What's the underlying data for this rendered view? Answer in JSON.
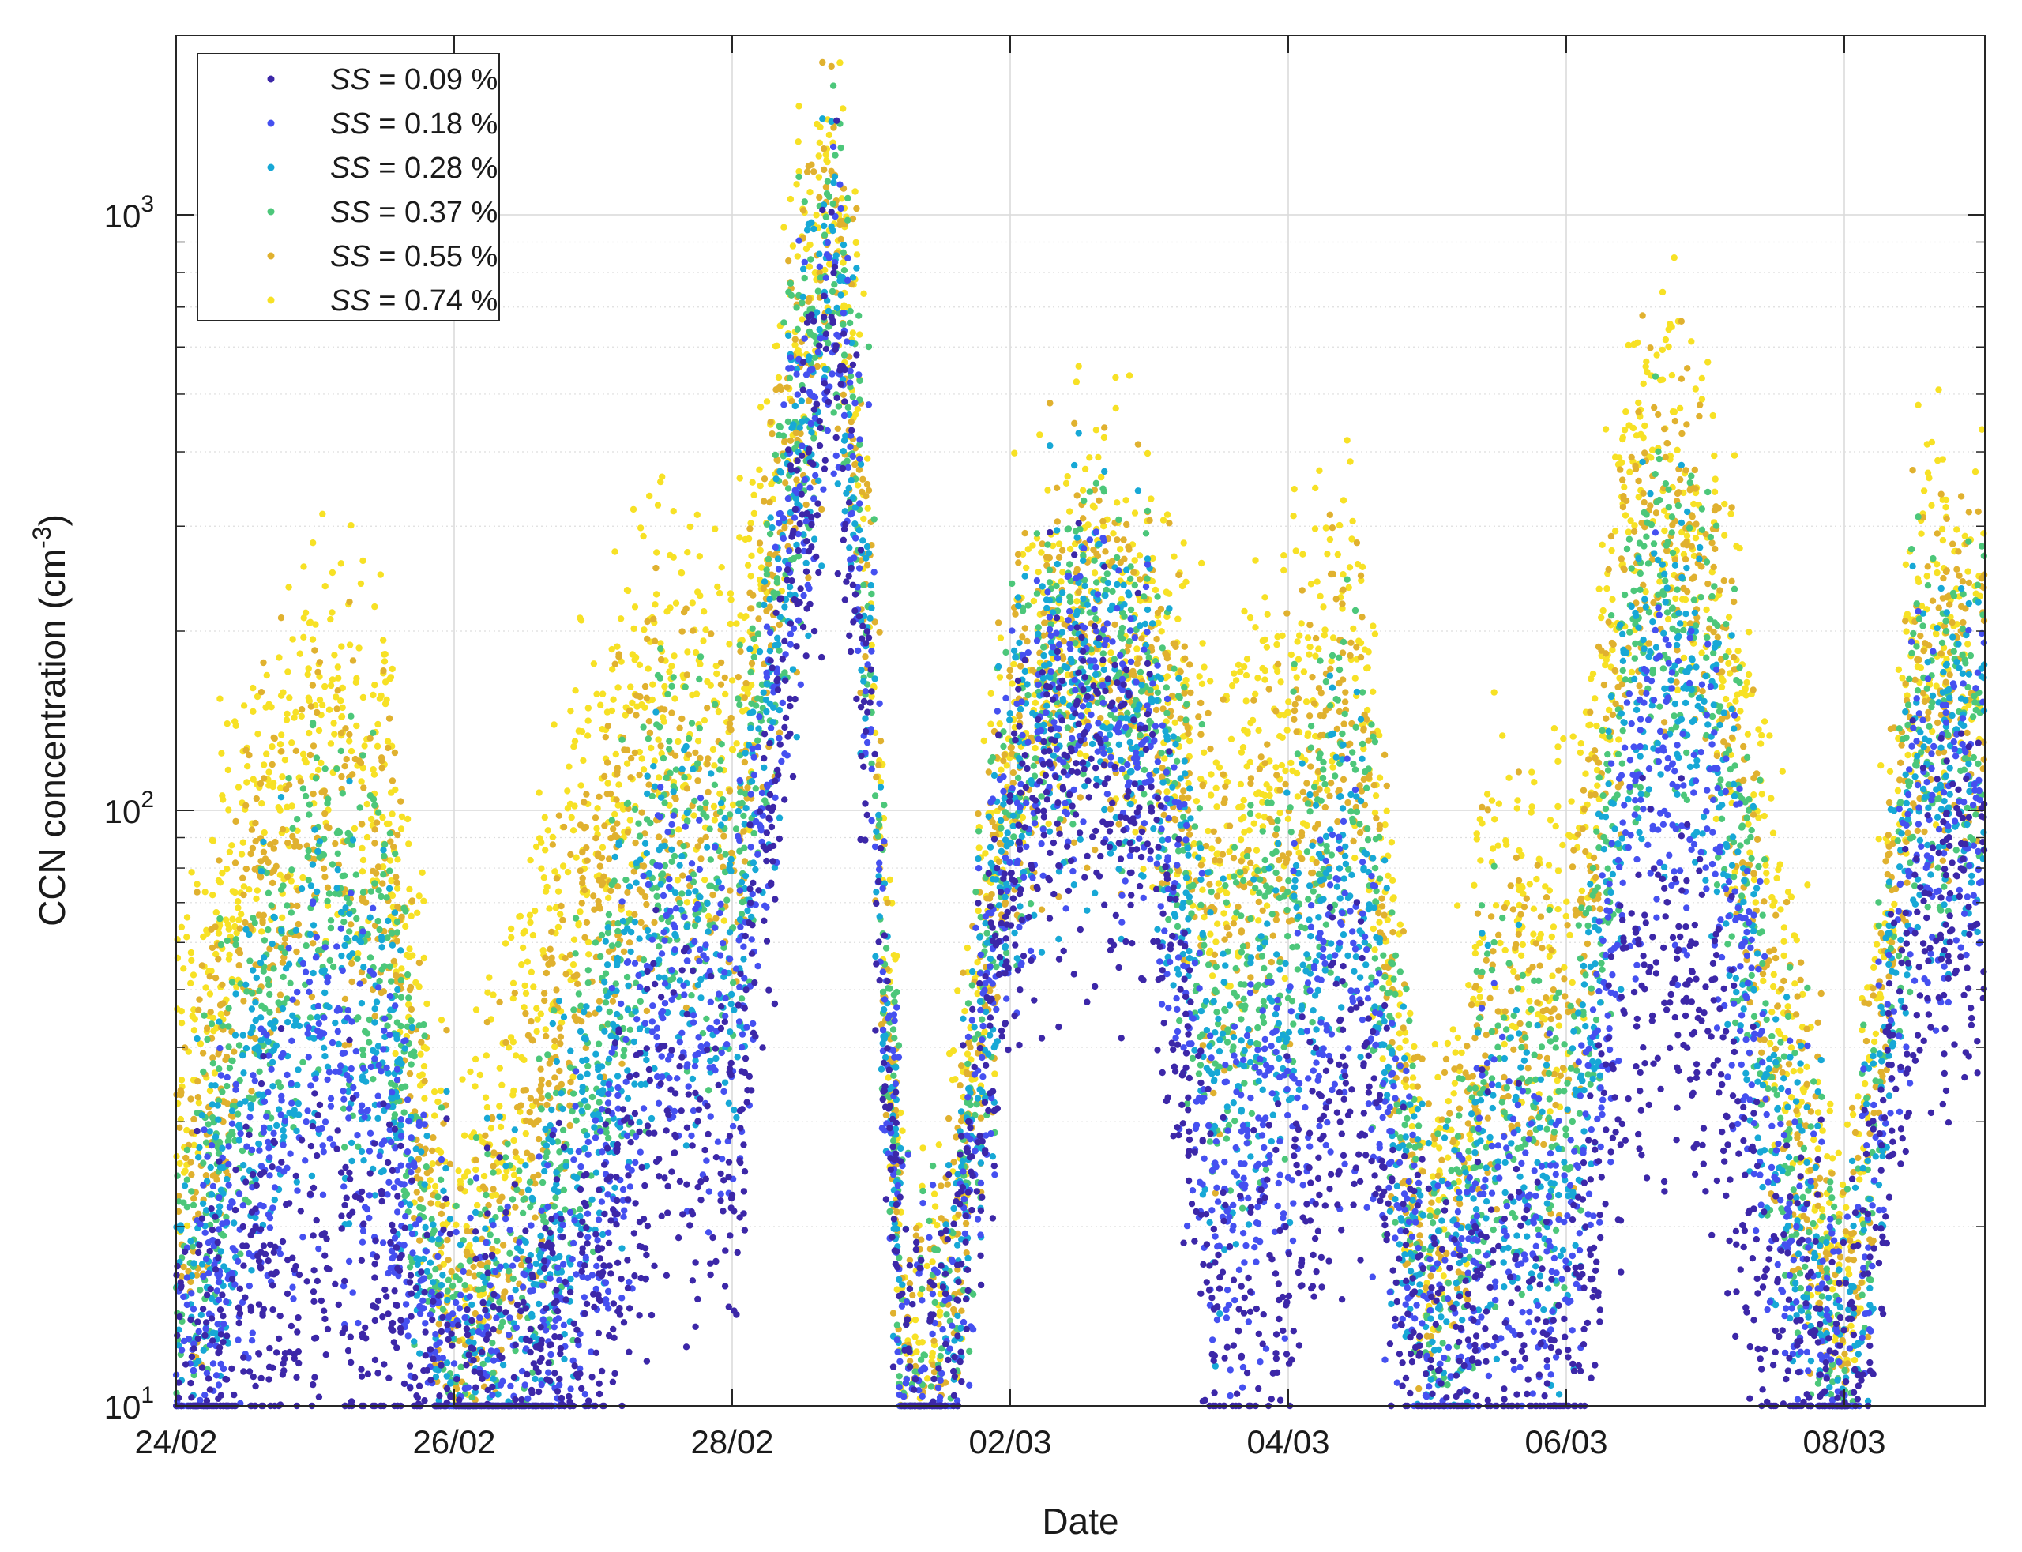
{
  "chart_data": {
    "type": "scatter",
    "title": "",
    "xlabel": "Date",
    "ylabel": "CCN concentration (cm",
    "ylabel_exponent": "-3",
    "ylabel_suffix": ")",
    "x_start_date": "2024-02-24",
    "xlim": [
      "24/02",
      "09/03"
    ],
    "x_tick_labels": [
      "24/02",
      "26/02",
      "28/02",
      "02/03",
      "04/03",
      "06/03",
      "08/03"
    ],
    "y_scale": "log",
    "ylim": [
      10,
      2000
    ],
    "y_tick_labels": [
      {
        "base": "10",
        "exp": "1",
        "value": 10
      },
      {
        "base": "10",
        "exp": "2",
        "value": 100
      },
      {
        "base": "10",
        "exp": "3",
        "value": 1000
      }
    ],
    "grid": true,
    "legend_position": "top-left",
    "series": [
      {
        "name": "SS = 0.09 %",
        "label_italic": "SS",
        "label_rest": " = 0.09 %",
        "color": "#3c27a8"
      },
      {
        "name": "SS = 0.18 %",
        "label_italic": "SS",
        "label_rest": " = 0.18 %",
        "color": "#4550f0"
      },
      {
        "name": "SS = 0.28 %",
        "label_italic": "SS",
        "label_rest": " = 0.28 %",
        "color": "#17a8d6"
      },
      {
        "name": "SS = 0.37 %",
        "label_italic": "SS",
        "label_rest": " = 0.37 %",
        "color": "#4cc77a"
      },
      {
        "name": "SS = 0.55 %",
        "label_italic": "SS",
        "label_rest": " = 0.55 %",
        "color": "#e0b12f"
      },
      {
        "name": "SS = 0.74 %",
        "label_italic": "SS",
        "label_rest": " = 0.74 %",
        "color": "#f7e125"
      }
    ],
    "profile_day": [
      0,
      0.5,
      1,
      1.5,
      2,
      2.5,
      3,
      3.5,
      4,
      4.5,
      4.75,
      5,
      5.25,
      5.5,
      6,
      6.5,
      7,
      7.5,
      8,
      8.5,
      9,
      9.5,
      9.75,
      10,
      10.5,
      11,
      11.5,
      12,
      12.5,
      13,
      13.5,
      14,
      14.5,
      15
    ],
    "profile_values": [
      [
        10,
        14,
        18,
        15,
        10,
        11,
        15,
        30,
        25,
        300,
        600,
        130,
        10,
        10,
        80,
        120,
        100,
        12,
        18,
        40,
        11,
        15,
        12,
        12,
        50,
        45,
        15,
        10,
        60,
        70,
        80,
        100,
        110,
        120
      ],
      [
        10,
        22,
        35,
        28,
        10,
        12,
        20,
        50,
        40,
        380,
        750,
        160,
        10,
        10,
        100,
        150,
        130,
        20,
        35,
        60,
        12,
        22,
        18,
        18,
        120,
        110,
        25,
        10,
        90,
        100,
        120,
        150,
        170,
        180
      ],
      [
        12,
        30,
        50,
        40,
        10,
        14,
        30,
        65,
        55,
        430,
        850,
        180,
        10,
        10,
        110,
        170,
        150,
        30,
        50,
        90,
        13,
        28,
        22,
        22,
        170,
        150,
        30,
        10,
        110,
        120,
        140,
        170,
        190,
        200
      ],
      [
        14,
        40,
        70,
        55,
        11,
        16,
        40,
        85,
        70,
        480,
        950,
        200,
        10,
        11,
        120,
        180,
        160,
        40,
        70,
        120,
        14,
        35,
        28,
        30,
        220,
        200,
        35,
        11,
        130,
        140,
        160,
        190,
        210,
        220
      ],
      [
        20,
        60,
        100,
        80,
        12,
        25,
        70,
        110,
        95,
        540,
        1050,
        230,
        10,
        12,
        130,
        200,
        180,
        60,
        100,
        160,
        15,
        50,
        40,
        45,
        300,
        260,
        45,
        12,
        160,
        170,
        190,
        220,
        240,
        250
      ],
      [
        35,
        90,
        140,
        120,
        14,
        45,
        110,
        160,
        140,
        620,
        1200,
        260,
        11,
        14,
        150,
        220,
        200,
        90,
        140,
        200,
        16,
        70,
        60,
        70,
        400,
        330,
        60,
        14,
        200,
        220,
        240,
        270,
        290,
        300
      ]
    ]
  }
}
